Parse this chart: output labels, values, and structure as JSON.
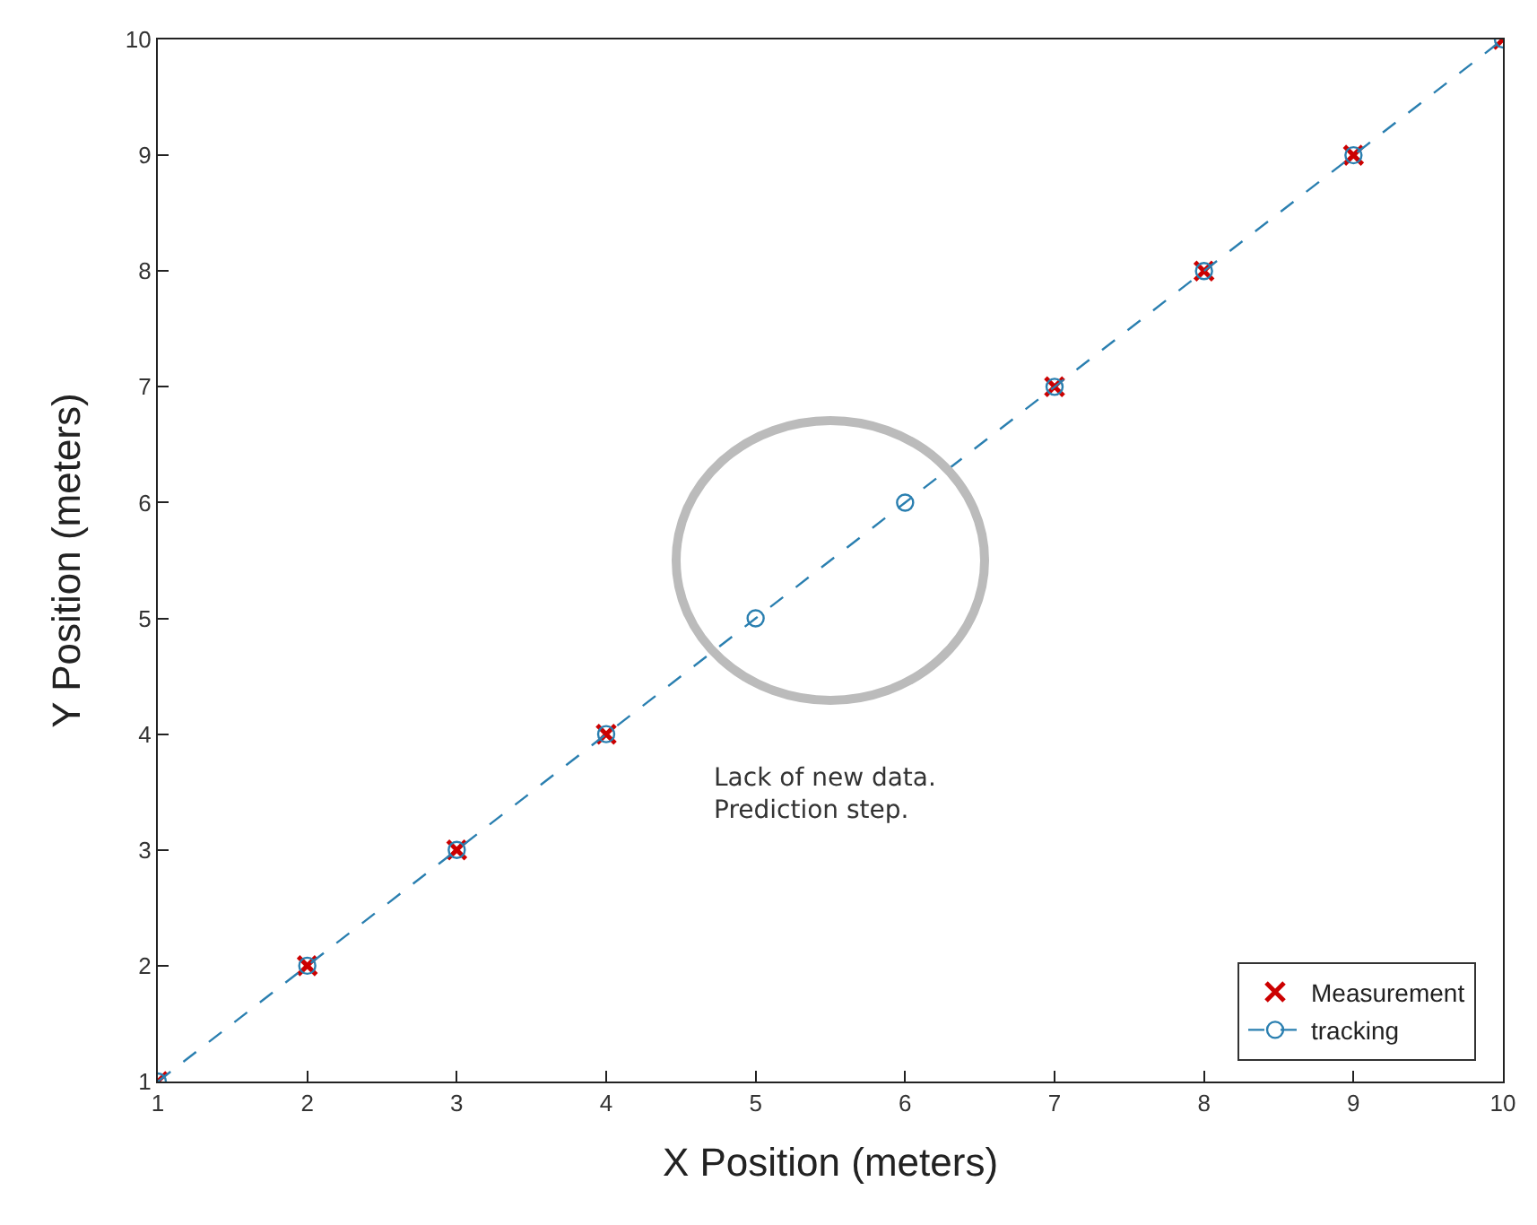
{
  "chart_data": {
    "type": "scatter",
    "xlabel": "X Position (meters)",
    "ylabel": "Y Position (meters)",
    "x": [
      1,
      2,
      3,
      4,
      5,
      6,
      7,
      8,
      9,
      10
    ],
    "series": [
      {
        "name": "Measurement",
        "type": "scatter",
        "marker": "cross",
        "color": "#cc0000",
        "values": [
          1,
          2,
          3,
          4,
          null,
          null,
          7,
          8,
          9,
          10
        ]
      },
      {
        "name": "tracking",
        "type": "line",
        "marker": "circle",
        "line_style": "dashed",
        "color": "#2a7fb0",
        "values": [
          1,
          2,
          3,
          4,
          5,
          6,
          7,
          8,
          9,
          10
        ]
      }
    ],
    "xlim": [
      1,
      10
    ],
    "ylim": [
      1,
      10
    ],
    "xticks": [
      1,
      2,
      3,
      4,
      5,
      6,
      7,
      8,
      9,
      10
    ],
    "yticks": [
      1,
      2,
      3,
      4,
      5,
      6,
      7,
      8,
      9,
      10
    ],
    "grid": false,
    "legend": "bottom right",
    "annotations": [
      "Lack of new data.\nPrediction step."
    ]
  }
}
